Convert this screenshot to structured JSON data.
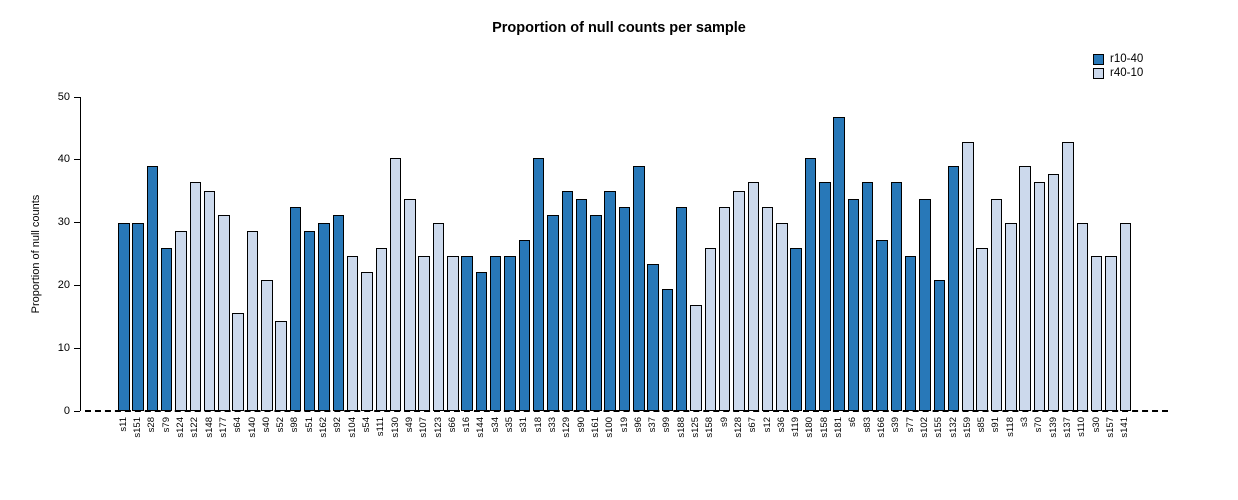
{
  "title": "Proportion of null counts per sample",
  "y_axis_label": "Proportion of null counts",
  "colors": {
    "r10-40": "#2878b8",
    "r40-10": "#ccd9ec",
    "bar_border": "#000000"
  },
  "legend": [
    {
      "name": "r10-40"
    },
    {
      "name": "r40-10"
    }
  ],
  "chart_data": {
    "type": "bar",
    "title": "Proportion of null counts per sample",
    "xlabel": "",
    "ylabel": "Proportion of null counts",
    "ylim": [
      0,
      50
    ],
    "y_ticks": [
      0,
      10,
      20,
      30,
      40,
      50
    ],
    "grid": false,
    "legend_position": "top-right",
    "baseline": {
      "y": 0,
      "style": "dashed"
    },
    "series_names": [
      "r10-40",
      "r40-10"
    ],
    "categories": [
      "s11",
      "s151",
      "s28",
      "s79",
      "s124",
      "s122",
      "s148",
      "s177",
      "s64",
      "s140",
      "s40",
      "s52",
      "s98",
      "s51",
      "s162",
      "s92",
      "s104",
      "s54",
      "s111",
      "s130",
      "s49",
      "s107",
      "s123",
      "s66",
      "s16",
      "s144",
      "s34",
      "s35",
      "s31",
      "s18",
      "s33",
      "s129",
      "s90",
      "s161",
      "s100",
      "s19",
      "s96",
      "s37",
      "s99",
      "s188",
      "s125",
      "s158",
      "s9",
      "s128",
      "s67",
      "s12",
      "s36",
      "s119",
      "s180",
      "s158",
      "s181",
      "s6",
      "s83",
      "s166",
      "s39",
      "s77",
      "s102",
      "s155",
      "s132",
      "s159",
      "s85",
      "s91",
      "s118",
      "s3",
      "s70",
      "s139",
      "s137",
      "s110",
      "s30",
      "s157",
      "s141"
    ],
    "values": [
      29.9,
      29.9,
      39.0,
      26.0,
      28.6,
      36.4,
      35.1,
      31.2,
      15.6,
      28.6,
      20.8,
      14.3,
      32.5,
      28.6,
      29.9,
      31.2,
      24.7,
      22.1,
      26.0,
      40.3,
      33.8,
      24.7,
      29.9,
      24.7,
      24.7,
      22.1,
      24.7,
      24.7,
      27.3,
      40.3,
      31.2,
      35.1,
      33.8,
      31.2,
      35.1,
      32.5,
      39.0,
      23.4,
      19.5,
      32.5,
      16.9,
      26.0,
      32.5,
      35.1,
      36.4,
      32.5,
      29.9,
      26.0,
      40.3,
      36.4,
      46.8,
      33.8,
      36.4,
      27.3,
      36.4,
      24.7,
      33.8,
      20.8,
      39.0,
      42.9,
      26.0,
      33.8,
      29.9,
      39.0,
      36.4,
      37.7,
      42.9,
      29.9,
      24.7,
      24.7,
      29.9
    ],
    "series": [
      "r10-40",
      "r10-40",
      "r10-40",
      "r10-40",
      "r40-10",
      "r40-10",
      "r40-10",
      "r40-10",
      "r40-10",
      "r40-10",
      "r40-10",
      "r40-10",
      "r10-40",
      "r10-40",
      "r10-40",
      "r10-40",
      "r40-10",
      "r40-10",
      "r40-10",
      "r40-10",
      "r40-10",
      "r40-10",
      "r40-10",
      "r40-10",
      "r10-40",
      "r10-40",
      "r10-40",
      "r10-40",
      "r10-40",
      "r10-40",
      "r10-40",
      "r10-40",
      "r10-40",
      "r10-40",
      "r10-40",
      "r10-40",
      "r10-40",
      "r10-40",
      "r10-40",
      "r10-40",
      "r40-10",
      "r40-10",
      "r40-10",
      "r40-10",
      "r40-10",
      "r40-10",
      "r40-10",
      "r10-40",
      "r10-40",
      "r10-40",
      "r10-40",
      "r10-40",
      "r10-40",
      "r10-40",
      "r10-40",
      "r10-40",
      "r10-40",
      "r10-40",
      "r10-40",
      "r40-10",
      "r40-10",
      "r40-10",
      "r40-10",
      "r40-10",
      "r40-10",
      "r40-10",
      "r40-10",
      "r40-10",
      "r40-10",
      "r40-10",
      "r40-10"
    ]
  }
}
